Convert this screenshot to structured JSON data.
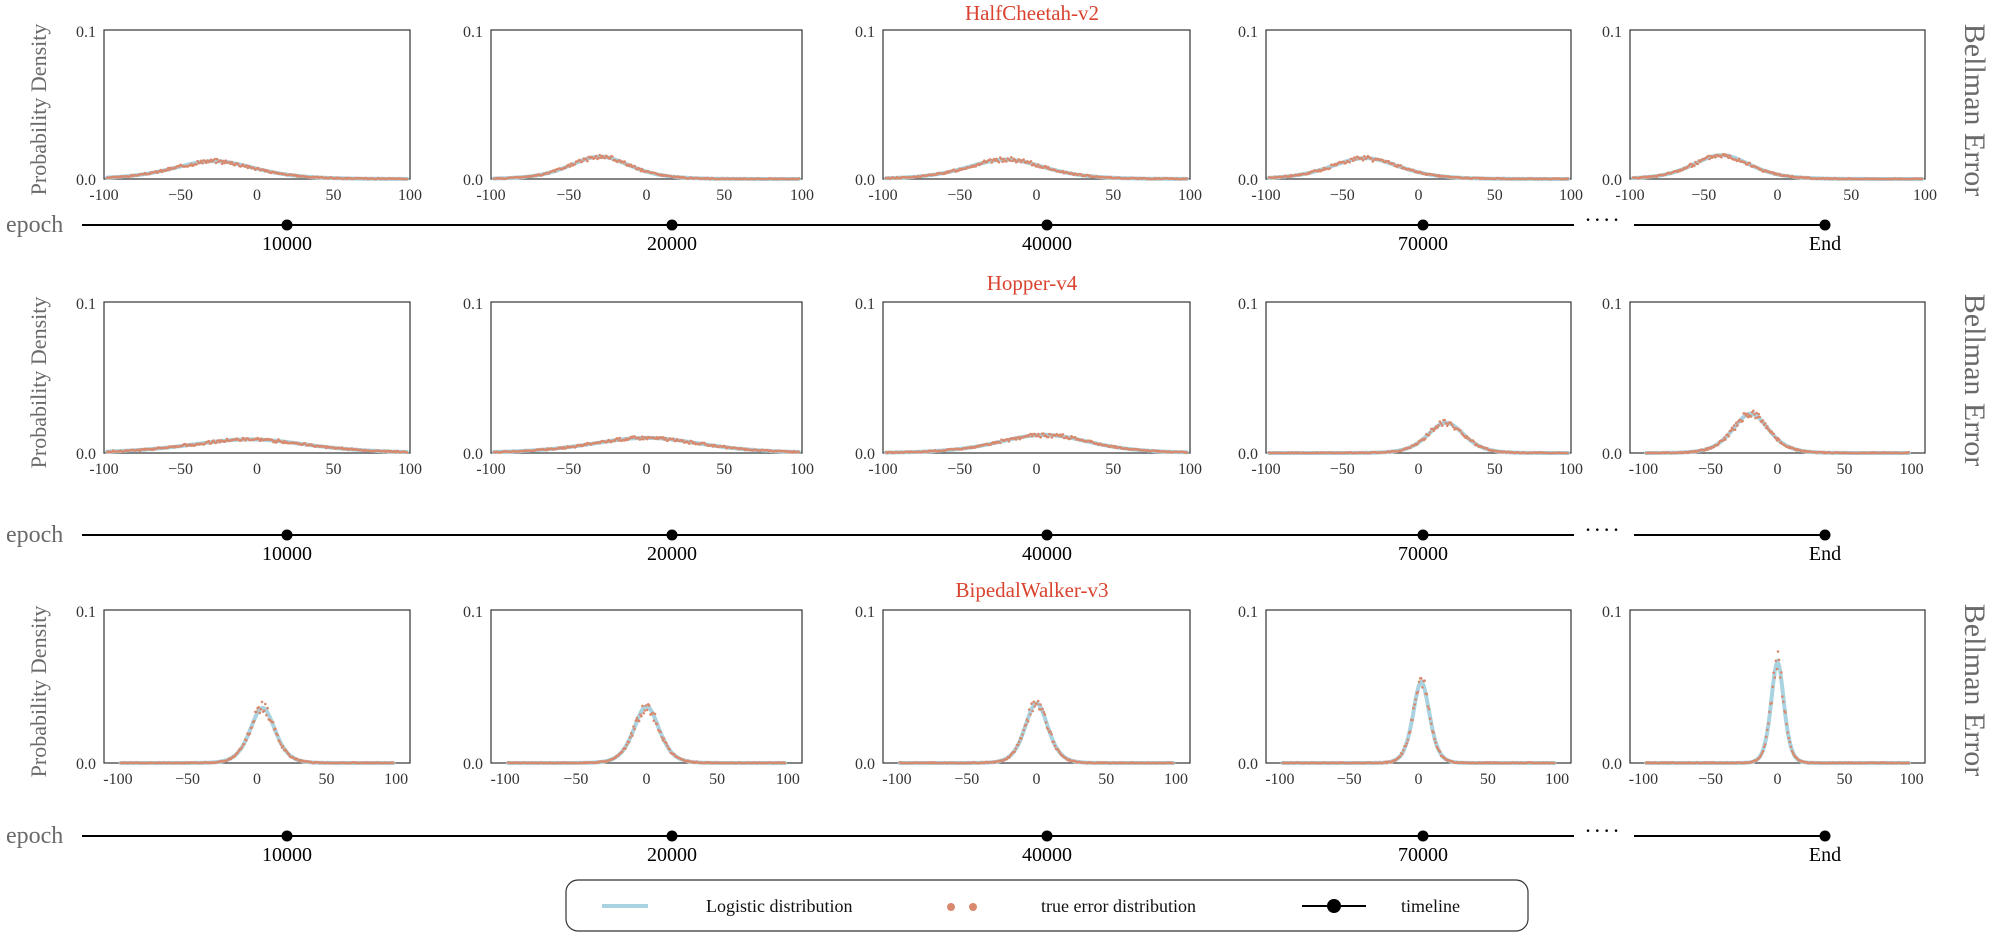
{
  "colors": {
    "logistic": "#a9d3e0",
    "true_error": "#d98a6e",
    "title": "#d9432f",
    "axis": "#333333",
    "label": "#6a6a6a",
    "timeline": "#000000"
  },
  "labels": {
    "y_axis": "Probability Density",
    "row_side": "Bellman Error",
    "timeline": "epoch",
    "ellipsis": "····",
    "y_top": "0.1",
    "y_zero": "0.0"
  },
  "legend": {
    "logistic": "Logistic distribution",
    "true_error": "true error distribution",
    "timeline": "timeline"
  },
  "chart_data": [
    {
      "title": "HalfCheetah-v2",
      "type": "line",
      "epochs": [
        "10000",
        "20000",
        "40000",
        "70000",
        "End"
      ],
      "ylim": [
        0,
        0.1
      ],
      "yticks": [
        "0.0",
        "0.1"
      ],
      "panels": [
        {
          "xlim": [
            -100,
            100
          ],
          "xticks": [
            "-100",
            "−50",
            "0",
            "50",
            "100"
          ],
          "mu": -28,
          "s": 18,
          "peak": 0.012
        },
        {
          "xlim": [
            -100,
            100
          ],
          "xticks": [
            "-100",
            "−50",
            "0",
            "50",
            "100"
          ],
          "mu": -30,
          "s": 13,
          "peak": 0.015
        },
        {
          "xlim": [
            -100,
            100
          ],
          "xticks": [
            "-100",
            "−50",
            "0",
            "50",
            "100"
          ],
          "mu": -20,
          "s": 17,
          "peak": 0.013
        },
        {
          "xlim": [
            -100,
            100
          ],
          "xticks": [
            "-100",
            "−50",
            "0",
            "50",
            "100"
          ],
          "mu": -35,
          "s": 15,
          "peak": 0.014
        },
        {
          "xlim": [
            -100,
            100
          ],
          "xticks": [
            "-100",
            "−50",
            "0",
            "50",
            "100"
          ],
          "mu": -38,
          "s": 13,
          "peak": 0.016
        }
      ]
    },
    {
      "title": "Hopper-v4",
      "type": "line",
      "epochs": [
        "10000",
        "20000",
        "40000",
        "70000",
        "End"
      ],
      "ylim": [
        0,
        0.1
      ],
      "yticks": [
        "0.0",
        "0.1"
      ],
      "panels": [
        {
          "xlim": [
            -100,
            100
          ],
          "xticks": [
            "-100",
            "−50",
            "0",
            "50",
            "100"
          ],
          "mu": -5,
          "s": 26,
          "peak": 0.009
        },
        {
          "xlim": [
            -100,
            100
          ],
          "xticks": [
            "-100",
            "−50",
            "0",
            "50",
            "100"
          ],
          "mu": 0,
          "s": 24,
          "peak": 0.01
        },
        {
          "xlim": [
            -100,
            100
          ],
          "xticks": [
            "-100",
            "−50",
            "0",
            "50",
            "100"
          ],
          "mu": 5,
          "s": 20,
          "peak": 0.012
        },
        {
          "xlim": [
            -100,
            100
          ],
          "xticks": [
            "-100",
            "−50",
            "0",
            "50",
            "100"
          ],
          "mu": 18,
          "s": 8,
          "peak": 0.02
        },
        {
          "xlim": [
            -110,
            110
          ],
          "xticks": [
            "-100",
            "−50",
            "0",
            "50",
            "100"
          ],
          "mu": -20,
          "s": 9,
          "peak": 0.026
        }
      ]
    },
    {
      "title": "BipedalWalker-v3",
      "type": "line",
      "epochs": [
        "10000",
        "20000",
        "40000",
        "70000",
        "End"
      ],
      "ylim": [
        0,
        0.1
      ],
      "yticks": [
        "0.0",
        "0.1"
      ],
      "panels": [
        {
          "xlim": [
            -110,
            110
          ],
          "xticks": [
            "-100",
            "−50",
            "0",
            "50",
            "100"
          ],
          "mu": 4,
          "s": 6,
          "peak": 0.036
        },
        {
          "xlim": [
            -110,
            110
          ],
          "xticks": [
            "-100",
            "−50",
            "0",
            "50",
            "100"
          ],
          "mu": 0,
          "s": 6,
          "peak": 0.037
        },
        {
          "xlim": [
            -110,
            110
          ],
          "xticks": [
            "-100",
            "−50",
            "0",
            "50",
            "100"
          ],
          "mu": 0,
          "s": 5.5,
          "peak": 0.039
        },
        {
          "xlim": [
            -110,
            110
          ],
          "xticks": [
            "-100",
            "−50",
            "0",
            "50",
            "100"
          ],
          "mu": 2,
          "s": 4,
          "peak": 0.053
        },
        {
          "xlim": [
            -110,
            110
          ],
          "xticks": [
            "-100",
            "−50",
            "0",
            "50",
            "100"
          ],
          "mu": 0,
          "s": 3.2,
          "peak": 0.066
        }
      ]
    }
  ]
}
